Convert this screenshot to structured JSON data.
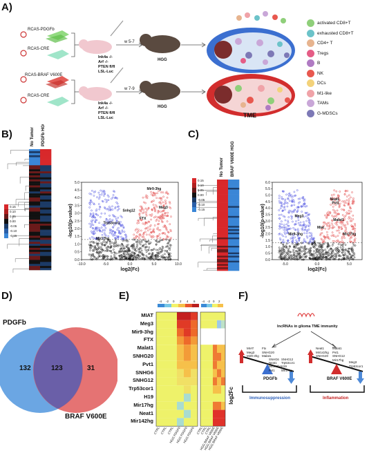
{
  "panels": {
    "a": "A)",
    "b": "B)",
    "c": "C)",
    "d": "D)",
    "e": "E)",
    "f": "F)"
  },
  "panelA": {
    "top": {
      "vector1": "RCAS-PDGFb",
      "vector2": "RCAS-CRE",
      "week": "w 5-7",
      "genotype": [
        "Ink4a -/-",
        "Arf -/-",
        "PTEN fl/fl",
        "LSL-Luc"
      ],
      "outcome": "HGG"
    },
    "bottom": {
      "vector1": "RCAS-BRAF V600E",
      "vector2": "RCAS-CRE",
      "week": "w 7-9",
      "genotype": [
        "Ink4a -/-",
        "Arf -/-",
        "PTEN fl/fl",
        "LSL-Luc"
      ],
      "outcome": "HGG"
    },
    "tme_label": "TME",
    "legend": [
      {
        "label": "activated CD8+T",
        "color": "#8fcf7a",
        "icon": "activated-cd8-icon"
      },
      {
        "label": "exhausted CD8+T",
        "color": "#6cc3c9",
        "icon": "exhausted-cd8-icon"
      },
      {
        "label": "CD4+ T",
        "color": "#e7b48f",
        "icon": "cd4-icon"
      },
      {
        "label": "Tregs",
        "color": "#e55d86",
        "icon": "treg-icon"
      },
      {
        "label": "B",
        "color": "#b07bc3",
        "icon": "b-cell-icon"
      },
      {
        "label": "NK",
        "color": "#e8584f",
        "icon": "nk-icon"
      },
      {
        "label": "DCs",
        "color": "#f3d27a",
        "icon": "dc-icon"
      },
      {
        "label": "M1-like",
        "color": "#f0a3a8",
        "icon": "m1-icon"
      },
      {
        "label": "TAMs",
        "color": "#c9a7d8",
        "icon": "tam-icon"
      },
      {
        "label": "G-MDSCs",
        "color": "#7d79b6",
        "icon": "gmdsc-icon"
      }
    ]
  },
  "panelB": {
    "heatmap_cols": [
      "No Tumor",
      "PDGFb HGG"
    ],
    "scale_ticks": [
      "0.15",
      "0.10",
      "0.05",
      "0.00",
      "-0.05",
      "-0.10",
      "-0.15"
    ],
    "volcano": {
      "ylabel": "-log10(p-value)",
      "xlabel": "log2(Fc)",
      "xticks": [
        "-10.0",
        "-5.0",
        "0.0",
        "5.0",
        "10.0"
      ],
      "yticks": [
        "0.0",
        "0.5",
        "1.0",
        "1.5",
        "2.0",
        "2.5",
        "3.0",
        "3.5",
        "4.0",
        "4.5",
        "5.0"
      ],
      "genes": [
        "Mir9-3hg",
        "Meg3",
        "Snhg12",
        "FTX",
        "Trp53cor1",
        "Mir17hg"
      ]
    }
  },
  "panelC": {
    "heatmap_cols": [
      "No Tumor",
      "BRAF V600E HGG"
    ],
    "scale_ticks": [
      "0.15",
      "0.10",
      "0.05",
      "0.00",
      "-0.05",
      "-0.10",
      "-0.15"
    ],
    "volcano": {
      "ylabel": "-log10(p-value)",
      "xlabel": "log2(Fc)",
      "xticks": [
        "-5.0",
        "0.0",
        "5.0"
      ],
      "yticks": [
        "0.0",
        "0.5",
        "1.0",
        "1.5",
        "2.0",
        "2.5",
        "3.0",
        "3.5",
        "4.0",
        "4.5",
        "5.0",
        "5.5",
        "6.0"
      ],
      "genes": [
        "Neat1",
        "Pvt1",
        "Meg3",
        "Malat1",
        "Miat",
        "Mir9-3hg",
        "Mir17hg"
      ]
    }
  },
  "panelD": {
    "left_label": "PDGFb",
    "right_label": "BRAF V600E",
    "left_only": "132",
    "overlap": "123",
    "right_only": "31"
  },
  "panelE": {
    "scale1": [
      "-4",
      "-2",
      "0",
      "2",
      "4",
      "6"
    ],
    "scale2": [
      "-4",
      "-2",
      "0",
      "2"
    ],
    "genes": [
      "MIAT",
      "Meg3",
      "Mir9-3hg",
      "FTX",
      "Malat1",
      "SNHG20",
      "Pvt1",
      "SNHG6",
      "SNHG12",
      "Trp53cor1",
      "H19",
      "Mir17hg",
      "Neat1",
      "Mir142hg"
    ],
    "cols_left": [
      "CTRL",
      "CTRL",
      "CTRL",
      "HGG PDGFb",
      "HGG PDGFb",
      "HGG PDGFb"
    ],
    "cols_right": [
      "CTRL",
      "CTRL",
      "CTRL",
      "HGG BRAF V600E",
      "HGG BRAF V600E",
      "HGG BRAF V600E"
    ],
    "side_label": "log2Fc"
  },
  "panelF": {
    "title": "lncRNAs in glioma TME immunity",
    "left_up": [
      "MIAT",
      "Meg3",
      "Mir9-3hg"
    ],
    "left_up2": [
      "Ftx",
      "SNHG20",
      "Malat1"
    ],
    "left_down": [
      "SNHG6",
      "Neat1",
      "Mir142hg",
      "Pvt1"
    ],
    "left_down2": [
      "SNHG12",
      "Trp53cor1",
      "H19",
      "Mir17hg"
    ],
    "left_label": "PDGFb",
    "left_outcome": "Immunosuppression",
    "right_up": [
      "Neat1",
      "Mir142hg",
      "SNHG20"
    ],
    "right_up2": [
      "Malat1",
      "Pvt1",
      "SNHG12",
      "Mir17hg"
    ],
    "right_down": [
      "Meg3",
      "Trp53cor1"
    ],
    "right_label": "BRAF V600E",
    "right_outcome": "Inflammation"
  }
}
